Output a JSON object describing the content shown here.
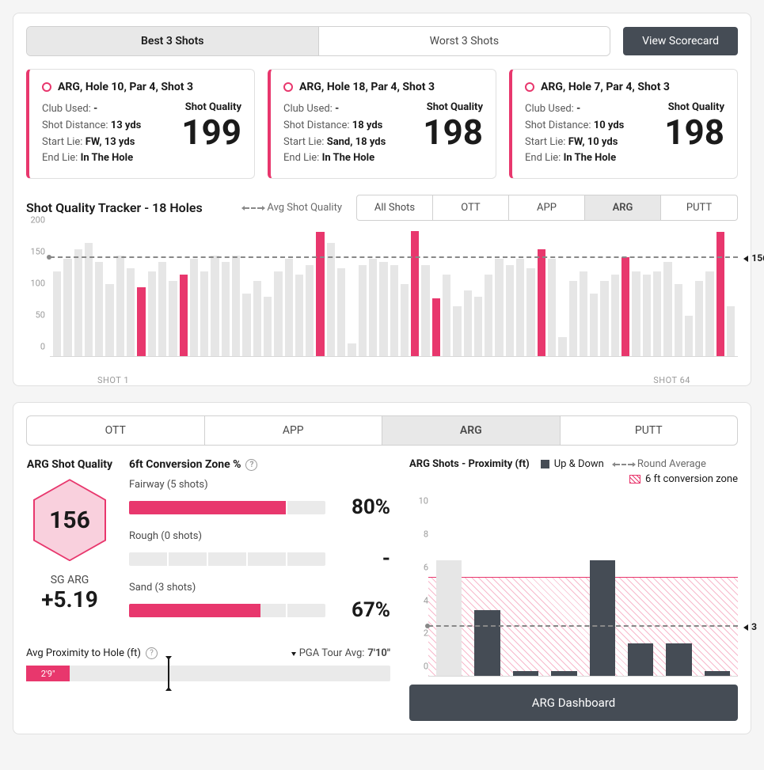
{
  "colors": {
    "accent": "#e8376d",
    "accent_light": "#f9d0dd",
    "bar_muted": "#e6e6e6",
    "dark": "#454c55"
  },
  "top": {
    "seg": {
      "best": "Best 3 Shots",
      "worst": "Worst 3 Shots",
      "active": "best"
    },
    "scorecard_btn": "View Scorecard"
  },
  "shots": [
    {
      "title": "ARG, Hole 10, Par 4, Shot 3",
      "club_label": "Club Used:",
      "club": "-",
      "dist_label": "Shot Distance:",
      "dist": "13 yds",
      "start_label": "Start Lie:",
      "start": "FW, 13 yds",
      "end_label": "End Lie:",
      "end": "In The Hole",
      "quality_label": "Shot Quality",
      "score": "199"
    },
    {
      "title": "ARG, Hole 18, Par 4, Shot 3",
      "club_label": "Club Used:",
      "club": "-",
      "dist_label": "Shot Distance:",
      "dist": "18 yds",
      "start_label": "Start Lie:",
      "start": "Sand, 18 yds",
      "end_label": "End Lie:",
      "end": "In The Hole",
      "quality_label": "Shot Quality",
      "score": "198"
    },
    {
      "title": "ARG, Hole 7, Par 4, Shot 3",
      "club_label": "Club Used:",
      "club": "-",
      "dist_label": "Shot Distance:",
      "dist": "10 yds",
      "start_label": "Start Lie:",
      "start": "FW, 10 yds",
      "end_label": "End Lie:",
      "end": "In The Hole",
      "quality_label": "Shot Quality",
      "score": "198"
    }
  ],
  "tracker": {
    "title": "Shot Quality Tracker - 18 Holes",
    "legend_avg": "Avg Shot Quality",
    "filters": [
      "All Shots",
      "OTT",
      "APP",
      "ARG",
      "PUTT"
    ],
    "active_filter": "ARG",
    "y_ticks": [
      0,
      50,
      100,
      150,
      200
    ],
    "ylim": [
      0,
      200
    ],
    "avg_value": 156,
    "avg_label": "156",
    "xlabel_left": "SHOT 1",
    "xlabel_right": "SHOT 64",
    "bars": [
      {
        "v": 135,
        "hi": 0
      },
      {
        "v": 155,
        "hi": 0
      },
      {
        "v": 170,
        "hi": 0
      },
      {
        "v": 180,
        "hi": 0
      },
      {
        "v": 150,
        "hi": 0
      },
      {
        "v": 115,
        "hi": 0
      },
      {
        "v": 160,
        "hi": 0
      },
      {
        "v": 140,
        "hi": 0
      },
      {
        "v": 110,
        "hi": 1
      },
      {
        "v": 135,
        "hi": 0
      },
      {
        "v": 150,
        "hi": 0
      },
      {
        "v": 120,
        "hi": 0
      },
      {
        "v": 130,
        "hi": 1
      },
      {
        "v": 155,
        "hi": 0
      },
      {
        "v": 135,
        "hi": 0
      },
      {
        "v": 160,
        "hi": 0
      },
      {
        "v": 150,
        "hi": 0
      },
      {
        "v": 160,
        "hi": 0
      },
      {
        "v": 100,
        "hi": 0
      },
      {
        "v": 120,
        "hi": 0
      },
      {
        "v": 95,
        "hi": 0
      },
      {
        "v": 135,
        "hi": 0
      },
      {
        "v": 155,
        "hi": 0
      },
      {
        "v": 130,
        "hi": 0
      },
      {
        "v": 145,
        "hi": 0
      },
      {
        "v": 198,
        "hi": 1
      },
      {
        "v": 180,
        "hi": 0
      },
      {
        "v": 140,
        "hi": 0
      },
      {
        "v": 20,
        "hi": 0
      },
      {
        "v": 145,
        "hi": 0
      },
      {
        "v": 155,
        "hi": 0
      },
      {
        "v": 150,
        "hi": 0
      },
      {
        "v": 145,
        "hi": 0
      },
      {
        "v": 115,
        "hi": 0
      },
      {
        "v": 199,
        "hi": 1
      },
      {
        "v": 145,
        "hi": 0
      },
      {
        "v": 92,
        "hi": 1
      },
      {
        "v": 130,
        "hi": 0
      },
      {
        "v": 80,
        "hi": 0
      },
      {
        "v": 105,
        "hi": 0
      },
      {
        "v": 95,
        "hi": 0
      },
      {
        "v": 130,
        "hi": 0
      },
      {
        "v": 155,
        "hi": 0
      },
      {
        "v": 145,
        "hi": 0
      },
      {
        "v": 155,
        "hi": 0
      },
      {
        "v": 140,
        "hi": 0
      },
      {
        "v": 170,
        "hi": 1
      },
      {
        "v": 155,
        "hi": 0
      },
      {
        "v": 30,
        "hi": 0
      },
      {
        "v": 120,
        "hi": 0
      },
      {
        "v": 135,
        "hi": 0
      },
      {
        "v": 100,
        "hi": 0
      },
      {
        "v": 120,
        "hi": 0
      },
      {
        "v": 130,
        "hi": 0
      },
      {
        "v": 158,
        "hi": 1
      },
      {
        "v": 135,
        "hi": 0
      },
      {
        "v": 130,
        "hi": 0
      },
      {
        "v": 135,
        "hi": 0
      },
      {
        "v": 150,
        "hi": 0
      },
      {
        "v": 115,
        "hi": 0
      },
      {
        "v": 65,
        "hi": 0
      },
      {
        "v": 120,
        "hi": 0
      },
      {
        "v": 135,
        "hi": 0
      },
      {
        "v": 198,
        "hi": 1
      },
      {
        "v": 80,
        "hi": 0
      }
    ]
  },
  "bottom": {
    "tabs": [
      "OTT",
      "APP",
      "ARG",
      "PUTT"
    ],
    "active_tab": "ARG",
    "quality_title": "ARG Shot Quality",
    "hex_value": "156",
    "sg_label": "SG ARG",
    "sg_value": "+5.19",
    "conv_title": "6ft Conversion Zone %",
    "conv_rows": [
      {
        "label": "Fairway (5 shots)",
        "pct": "80%",
        "fill": 80
      },
      {
        "label": "Rough (0 shots)",
        "pct": "-",
        "fill": 0
      },
      {
        "label": "Sand (3 shots)",
        "pct": "67%",
        "fill": 67
      }
    ],
    "avg_prox": {
      "title": "Avg Proximity to Hole (ft)",
      "pga_label": "PGA Tour Avg:",
      "pga_value": "7'10\"",
      "value_label": "2'9\"",
      "fill_pct": 12,
      "mark_pct": 39
    },
    "prox": {
      "title": "ARG Shots - Proximity (ft)",
      "legend_updown": "Up & Down",
      "legend_round": "Round Average",
      "legend_zone": "6 ft conversion zone",
      "y_ticks": [
        0,
        2,
        4,
        6,
        8,
        10
      ],
      "ylim": [
        0,
        11
      ],
      "zone_top": 6,
      "avg_value": 3,
      "avg_label": "3",
      "bars": [
        {
          "v": 7,
          "c": "muted"
        },
        {
          "v": 4,
          "c": "dark"
        },
        {
          "v": 0.3,
          "c": "dark"
        },
        {
          "v": 0.3,
          "c": "dark"
        },
        {
          "v": 7,
          "c": "dark"
        },
        {
          "v": 2,
          "c": "dark"
        },
        {
          "v": 2,
          "c": "dark"
        },
        {
          "v": 0.3,
          "c": "dark"
        }
      ],
      "dashboard_btn": "ARG Dashboard"
    }
  }
}
